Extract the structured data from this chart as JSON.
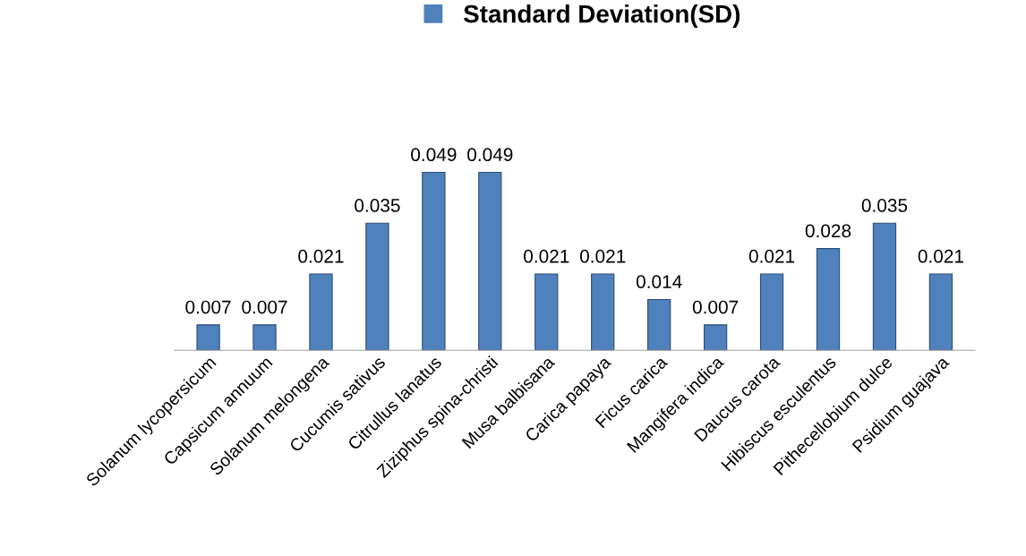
{
  "chart_data": {
    "type": "bar",
    "categories": [
      "Solanum lycopersicum",
      "Capsicum annuum",
      "Solanum melongena",
      "Cucumis sativus",
      "Citrullus lanatus",
      "Ziziphus spina-christi",
      "Musa balbisana",
      "Carica papaya",
      "Ficus carica",
      "Mangifera indica",
      "Daucus carota",
      "Hibiscus esculentus",
      "Pithecellobium dulce",
      "Psidium guajava"
    ],
    "series": [
      {
        "name": "Standard Deviation(SD)",
        "color": "#4f81bd",
        "values": [
          0.007,
          0.007,
          0.021,
          0.035,
          0.049,
          0.049,
          0.021,
          0.021,
          0.014,
          0.007,
          0.021,
          0.028,
          0.035,
          0.021
        ]
      }
    ],
    "data_labels": true,
    "legend": "top",
    "grid": false,
    "tick_labels": "x"
  }
}
